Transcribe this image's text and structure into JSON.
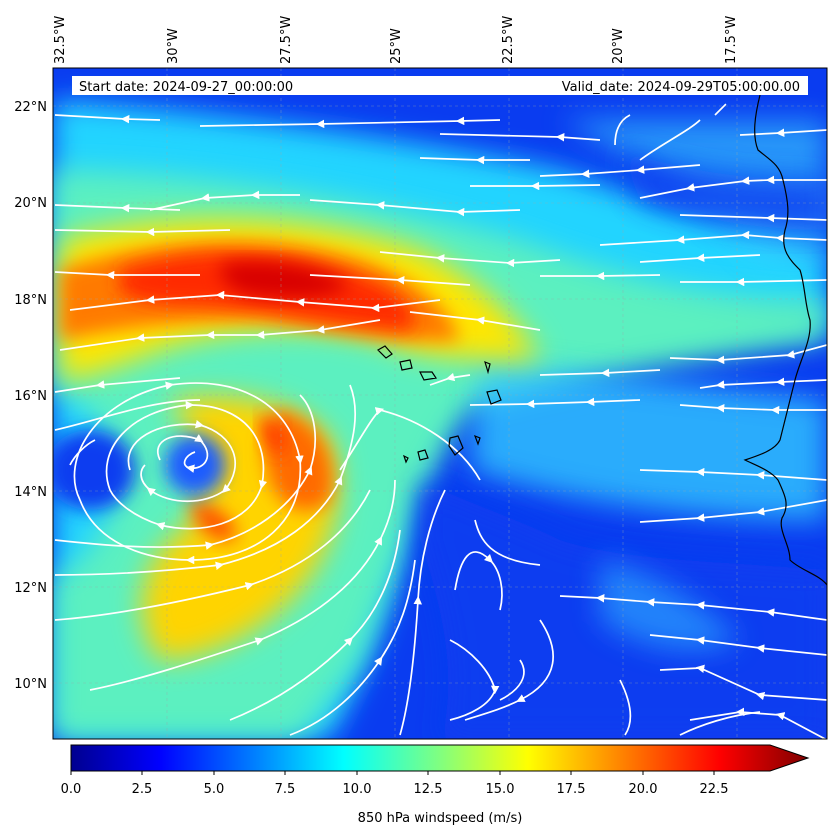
{
  "map": {
    "start_date_label": "Start date: 2024-09-27_00:00:00",
    "valid_date_label": "Valid_date: 2024-09-29T05:00:00.00",
    "lon_ticks": [
      "32.5°W",
      "30°W",
      "27.5°W",
      "25°W",
      "22.5°W",
      "20°W",
      "17.5°W"
    ],
    "lat_ticks": [
      "22°N",
      "20°N",
      "18°N",
      "16°N",
      "14°N",
      "12°N",
      "10°N"
    ],
    "lon_values": [
      -32.5,
      -30,
      -27.5,
      -25,
      -22.5,
      -20,
      -17.5
    ],
    "lat_values": [
      22,
      20,
      18,
      16,
      14,
      12,
      10
    ],
    "lon_range": [
      -32.5,
      -15.5
    ],
    "lat_range": [
      8.9,
      22.8
    ]
  },
  "colorbar": {
    "label": "850 hPa windspeed (m/s)",
    "ticks": [
      "0.0",
      "2.5",
      "5.0",
      "7.5",
      "10.0",
      "12.5",
      "15.0",
      "17.5",
      "20.0",
      "22.5"
    ],
    "tick_values": [
      0,
      2.5,
      5,
      7.5,
      10,
      12.5,
      15,
      17.5,
      20,
      22.5
    ],
    "range": [
      0,
      24
    ],
    "extend": "max",
    "colors": [
      "#00008f",
      "#0000ff",
      "#0080ff",
      "#00ffff",
      "#80ff80",
      "#ffff00",
      "#ff8000",
      "#ff0000",
      "#800000"
    ]
  },
  "field": {
    "background_color": "#0a3cf0",
    "vortex_center": {
      "lat": 14.6,
      "lon": -30.3
    },
    "jet_max_label": "High wind core near 18°N, 27°W"
  }
}
